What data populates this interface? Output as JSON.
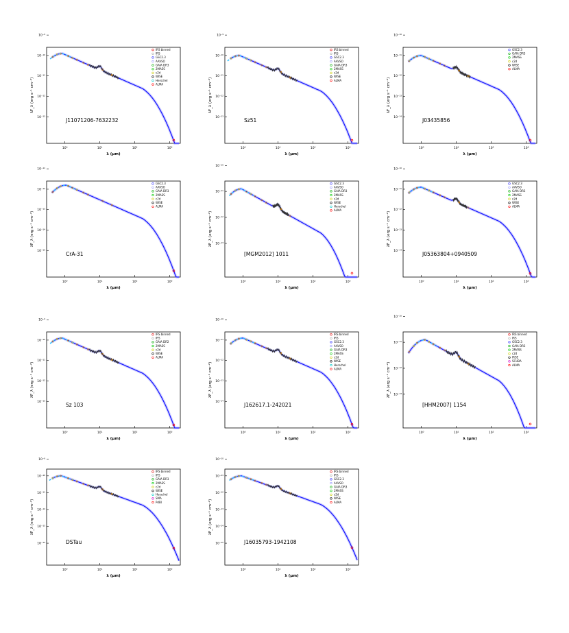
{
  "figure": {
    "ylabel": "λF_λ (erg s⁻¹ cm⁻²)",
    "xlabel": "λ (μm)",
    "colors": {
      "model": "#1a1aff",
      "model_fade": "#8a8aff",
      "irs": "#333333",
      "photometry": "#e08a00"
    }
  },
  "chart_data": [
    {
      "type": "scatter",
      "name": "J11071206-7632232",
      "xscale": "log",
      "yscale": "log",
      "xlim": [
        0.3,
        2000
      ],
      "xticks": [
        "10⁰",
        "10¹",
        "10²",
        "10³"
      ],
      "yticks": [
        "10⁻⁹",
        "10⁻¹⁰",
        "10⁻¹¹",
        "10⁻¹²",
        "10⁻¹³"
      ],
      "ylim_exp": [
        -13.3,
        -8.6
      ],
      "legend": [
        "IRS binned",
        "IRS",
        "GSC2.3",
        "AAVSO",
        "GAIA DR3",
        "2MASS",
        "c2d",
        "WISE",
        "Herschel",
        "ALMA"
      ],
      "legend_colors": [
        "#e00000",
        "#aaaaaa",
        "#3333ff",
        "#9999ff",
        "#00aa00",
        "#00cc00",
        "#cccc00",
        "#000000",
        "#00cccc",
        "#ff0000"
      ],
      "legend_pos": "top-right",
      "peak_um": 0.85,
      "peak_exp": -8.9,
      "irs_um": [
        5,
        35
      ],
      "far_um": 1300,
      "far_exp": -13.1
    },
    {
      "type": "scatter",
      "name": "Sz51",
      "xscale": "log",
      "yscale": "log",
      "xlim": [
        0.3,
        2000
      ],
      "xticks": [
        "10⁰",
        "10¹",
        "10²",
        "10³"
      ],
      "yticks": [
        "10⁻⁹",
        "10⁻¹⁰",
        "10⁻¹¹",
        "10⁻¹²",
        "10⁻¹³"
      ],
      "ylim_exp": [
        -13.3,
        -8.6
      ],
      "legend": [
        "IRS binned",
        "IRS",
        "GSC2.3",
        "AAVSO",
        "GAIA DR3",
        "2MASS",
        "c2d",
        "WISE",
        "ALMA"
      ],
      "legend_colors": [
        "#e00000",
        "#aaaaaa",
        "#3333ff",
        "#9999ff",
        "#00aa00",
        "#00cc00",
        "#cccc00",
        "#000000",
        "#ff0000"
      ],
      "legend_pos": "top-right",
      "peak_um": 0.8,
      "peak_exp": -9.0,
      "irs_um": [
        5,
        35
      ],
      "far_um": 1300,
      "far_exp": -13.2
    },
    {
      "type": "scatter",
      "name": "J03435856",
      "xscale": "log",
      "yscale": "log",
      "xlim": [
        0.3,
        2000
      ],
      "xticks": [
        "10⁰",
        "10¹",
        "10²",
        "10³"
      ],
      "yticks": [
        "10⁻¹⁰",
        "10⁻¹¹",
        "10⁻¹²",
        "10⁻¹³",
        "10⁻¹⁴"
      ],
      "ylim_exp": [
        -14.3,
        -9.6
      ],
      "legend": [
        "GSC2.3",
        "GAIA DR3",
        "2MASS",
        "c2d",
        "WISE",
        "ALMA"
      ],
      "legend_colors": [
        "#3333ff",
        "#00aa00",
        "#00cc00",
        "#cccc00",
        "#000000",
        "#ff0000"
      ],
      "legend_pos": "top-right",
      "peak_um": 1.0,
      "peak_exp": -10.0,
      "irs_um": [
        8,
        25
      ],
      "far_um": 1300,
      "far_exp": -14.2
    },
    {
      "type": "scatter",
      "name": "CrA-31",
      "xscale": "log",
      "yscale": "log",
      "xlim": [
        0.3,
        2000
      ],
      "xticks": [
        "10⁰",
        "10¹",
        "10²",
        "10³"
      ],
      "yticks": [
        "10⁻¹¹",
        "10⁻¹²",
        "10⁻¹³",
        "10⁻¹⁴",
        "10⁻¹⁵"
      ],
      "ylim_exp": [
        -15.3,
        -10.6
      ],
      "legend": [
        "GSC2.3",
        "AAVSO",
        "GAIA DR3",
        "2MASS",
        "c2d",
        "WISE",
        "ALMA"
      ],
      "legend_colors": [
        "#3333ff",
        "#9999ff",
        "#00aa00",
        "#00cc00",
        "#cccc00",
        "#000000",
        "#ff0000"
      ],
      "legend_pos": "top-right",
      "peak_um": 1.1,
      "peak_exp": -10.8,
      "irs_um": null,
      "far_um": 1300,
      "far_exp": -15.2
    },
    {
      "type": "scatter",
      "name": "[MGM2012] 1011",
      "xscale": "log",
      "yscale": "log",
      "xlim": [
        0.3,
        2000
      ],
      "xticks": [
        "10⁰",
        "10¹",
        "10²",
        "10³"
      ],
      "yticks": [
        "10⁻¹⁰",
        "10⁻¹¹",
        "10⁻¹²",
        "10⁻¹³"
      ],
      "ylim_exp": [
        -13.3,
        -9.6
      ],
      "legend": [
        "GSC2.3",
        "AAVSO",
        "GAIA DR3",
        "2MASS",
        "c2d",
        "WISE",
        "Herschel",
        "ALMA"
      ],
      "legend_colors": [
        "#3333ff",
        "#9999ff",
        "#00aa00",
        "#00cc00",
        "#cccc00",
        "#000000",
        "#00cccc",
        "#ff0000"
      ],
      "legend_pos": "top-right",
      "peak_um": 0.9,
      "peak_exp": -9.9,
      "irs_um": [
        7,
        20
      ],
      "far_um": 1300,
      "far_exp": -13.2
    },
    {
      "type": "scatter",
      "name": "J05363804+0940509",
      "xscale": "log",
      "yscale": "log",
      "xlim": [
        0.3,
        2000
      ],
      "xticks": [
        "10⁰",
        "10¹",
        "10²",
        "10³"
      ],
      "yticks": [
        "10⁻¹⁰",
        "10⁻¹¹",
        "10⁻¹²",
        "10⁻¹³",
        "10⁻¹⁴"
      ],
      "ylim_exp": [
        -14.3,
        -9.6
      ],
      "legend": [
        "GSC2.3",
        "AAVSO",
        "GAIA DR3",
        "2MASS",
        "c2d",
        "WISE",
        "ALMA"
      ],
      "legend_colors": [
        "#3333ff",
        "#9999ff",
        "#00aa00",
        "#00cc00",
        "#cccc00",
        "#000000",
        "#ff0000"
      ],
      "legend_pos": "top-right",
      "peak_um": 1.0,
      "peak_exp": -9.9,
      "irs_um": [
        8,
        20
      ],
      "far_um": 1300,
      "far_exp": -14.2
    },
    {
      "type": "scatter",
      "name": "Sz 103",
      "xscale": "log",
      "yscale": "log",
      "xlim": [
        0.3,
        2000
      ],
      "xticks": [
        "10⁰",
        "10¹",
        "10²",
        "10³"
      ],
      "yticks": [
        "10⁻⁹",
        "10⁻¹⁰",
        "10⁻¹¹",
        "10⁻¹²",
        "10⁻¹³"
      ],
      "ylim_exp": [
        -13.3,
        -8.6
      ],
      "legend": [
        "IRS binned",
        "IRS",
        "GAIA DR2",
        "2MASS",
        "c2d",
        "WISE",
        "ALMA"
      ],
      "legend_colors": [
        "#e00000",
        "#aaaaaa",
        "#00aa00",
        "#00cc00",
        "#cccc00",
        "#000000",
        "#ff0000"
      ],
      "legend_pos": "top-right",
      "peak_um": 0.85,
      "peak_exp": -8.9,
      "irs_um": [
        5,
        35
      ],
      "far_um": 1300,
      "far_exp": -13.1
    },
    {
      "type": "scatter",
      "name": "J162617.1-242021",
      "xscale": "log",
      "yscale": "log",
      "xlim": [
        0.3,
        2000
      ],
      "xticks": [
        "10⁰",
        "10¹",
        "10²",
        "10³"
      ],
      "yticks": [
        "10⁻¹⁰",
        "10⁻¹¹",
        "10⁻¹²",
        "10⁻¹³",
        "10⁻¹⁴"
      ],
      "ylim_exp": [
        -14.3,
        -9.6
      ],
      "legend": [
        "IRS binned",
        "IRS",
        "GSC2.3",
        "AAVSO",
        "GAIA DR3",
        "2MASS",
        "c2d",
        "WISE",
        "Herschel",
        "ALMA"
      ],
      "legend_colors": [
        "#e00000",
        "#aaaaaa",
        "#3333ff",
        "#9999ff",
        "#00aa00",
        "#00cc00",
        "#cccc00",
        "#000000",
        "#00cccc",
        "#ff0000"
      ],
      "legend_pos": "top-right",
      "peak_um": 1.0,
      "peak_exp": -9.9,
      "irs_um": [
        5,
        35
      ],
      "far_um": 1300,
      "far_exp": -14.2
    },
    {
      "type": "scatter",
      "name": "[HHM2007] 1154",
      "xscale": "log",
      "yscale": "log",
      "xlim": [
        0.3,
        2000
      ],
      "xticks": [
        "10⁰",
        "10¹",
        "10²",
        "10³"
      ],
      "yticks": [
        "10⁻¹⁰",
        "10⁻¹¹",
        "10⁻¹²",
        "10⁻¹³"
      ],
      "ylim_exp": [
        -13.3,
        -9.6
      ],
      "legend": [
        "IRS binned",
        "IRS",
        "GSC2.3",
        "GAIA DR3",
        "2MASS",
        "c2d",
        "IRSE",
        "SCUBA",
        "ALMA"
      ],
      "legend_colors": [
        "#e00000",
        "#aaaaaa",
        "#3333ff",
        "#00aa00",
        "#00cc00",
        "#cccc00",
        "#000000",
        "#cc00cc",
        "#ff0000"
      ],
      "legend_pos": "top-right",
      "peak_um": 1.3,
      "peak_exp": -9.9,
      "irs_um": [
        5,
        35
      ],
      "far_um": 1300,
      "far_exp": -13.2
    },
    {
      "type": "scatter",
      "name": "DSTau",
      "xscale": "log",
      "yscale": "log",
      "xlim": [
        0.3,
        2000
      ],
      "xticks": [
        "10⁰",
        "10¹",
        "10²",
        "10³"
      ],
      "yticks": [
        "10⁻⁹",
        "10⁻¹⁰",
        "10⁻¹¹",
        "10⁻¹²",
        "10⁻¹³",
        "10⁻¹⁴"
      ],
      "ylim_exp": [
        -14.3,
        -8.6
      ],
      "legend": [
        "IRS binned",
        "IRS",
        "GAIA DR3",
        "2MASS",
        "c2d",
        "WISE",
        "Herschel",
        "SMA",
        "PdBI"
      ],
      "legend_colors": [
        "#e00000",
        "#aaaaaa",
        "#00aa00",
        "#00cc00",
        "#cccc00",
        "#000000",
        "#00cccc",
        "#cc00cc",
        "#ff0000"
      ],
      "legend_pos": "top-right",
      "peak_um": 0.8,
      "peak_exp": -9.0,
      "irs_um": [
        5,
        35
      ],
      "far_um": 1300,
      "far_exp": -14.3
    },
    {
      "type": "scatter",
      "name": "J16035793-1942108",
      "xscale": "log",
      "yscale": "log",
      "xlim": [
        0.3,
        2000
      ],
      "xticks": [
        "10⁰",
        "10¹",
        "10²",
        "10³"
      ],
      "yticks": [
        "10⁻¹⁰",
        "10⁻¹¹",
        "10⁻¹²",
        "10⁻¹³",
        "10⁻¹⁴",
        "10⁻¹⁵"
      ],
      "ylim_exp": [
        -15.3,
        -9.6
      ],
      "legend": [
        "IRS binned",
        "IRS",
        "GSC2.3",
        "AAVSO",
        "GAIA DR3",
        "2MASS",
        "c2d",
        "WISE",
        "ALMA"
      ],
      "legend_colors": [
        "#e00000",
        "#aaaaaa",
        "#3333ff",
        "#9999ff",
        "#00aa00",
        "#00cc00",
        "#cccc00",
        "#000000",
        "#ff0000"
      ],
      "legend_pos": "top-right",
      "peak_um": 0.9,
      "peak_exp": -10.0,
      "irs_um": [
        5,
        35
      ],
      "far_um": 1300,
      "far_exp": -15.2
    }
  ]
}
